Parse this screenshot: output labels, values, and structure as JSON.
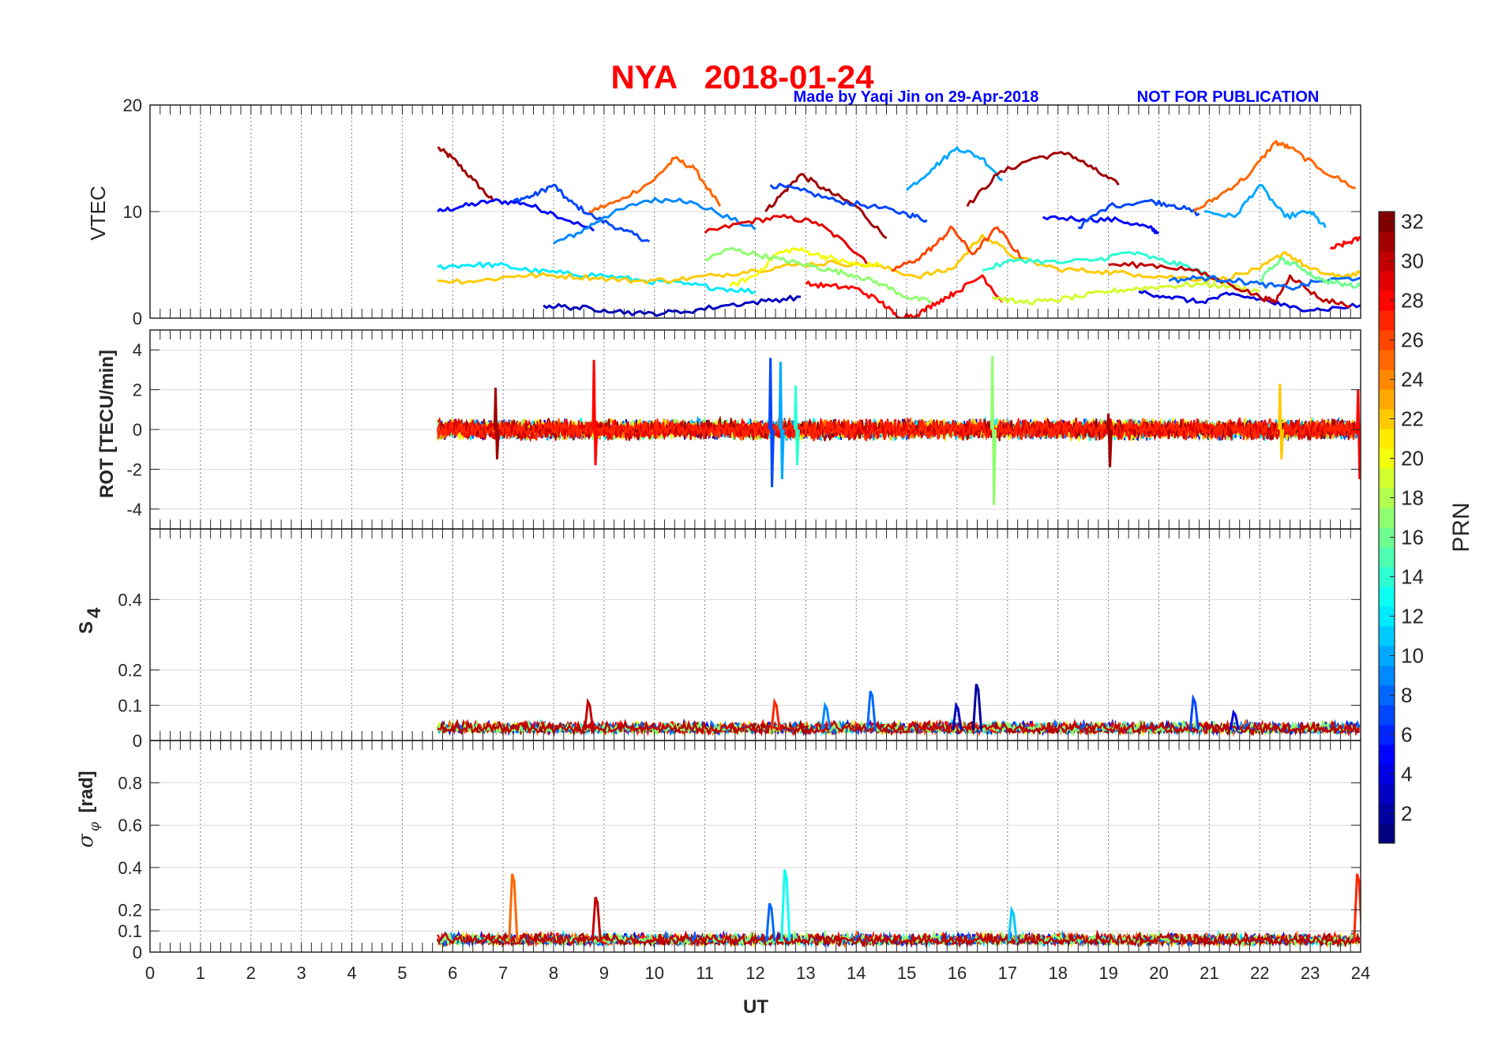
{
  "figure": {
    "title": "NYA   2018-01-24",
    "credit": "Made by Yaqi Jin on 29-Apr-2018",
    "notice": "NOT FOR PUBLICATION",
    "colors": {
      "title": "#ff0000",
      "credit": "#0000ff",
      "axis": "#262626",
      "grid": "#d9d9d9",
      "vgrid": "#808080"
    }
  },
  "chart_data": [
    {
      "type": "line",
      "panel": "VTEC",
      "ylabel": "VTEC",
      "xlim": [
        0,
        24
      ],
      "ylim": [
        0,
        20
      ],
      "yticks": [
        0,
        10,
        20
      ],
      "colorbar_prn": true,
      "series": [
        {
          "prn": 31,
          "x": [
            5.7,
            6.0,
            6.4,
            6.8
          ],
          "y": [
            16,
            15,
            13,
            11
          ]
        },
        {
          "prn": 5,
          "x": [
            5.7,
            6.2,
            6.8,
            7.4,
            8.0,
            8.8
          ],
          "y": [
            10,
            10.5,
            11,
            10.8,
            9.8,
            8.2
          ]
        },
        {
          "prn": 7,
          "x": [
            7.2,
            7.6,
            8.0,
            8.3,
            8.8,
            9.4,
            9.9
          ],
          "y": [
            11,
            11.5,
            12.5,
            11,
            9.5,
            8.2,
            7.2
          ]
        },
        {
          "prn": 9,
          "x": [
            8.0,
            8.5,
            9.0,
            9.8,
            10.5,
            11.2,
            12.0
          ],
          "y": [
            7.0,
            8,
            9.5,
            11,
            11.2,
            10,
            8.3
          ]
        },
        {
          "prn": 25,
          "x": [
            8.7,
            9.3,
            10.0,
            10.4,
            10.8,
            11.3
          ],
          "y": [
            10,
            11,
            13,
            15,
            14,
            10.5
          ]
        },
        {
          "prn": 29,
          "x": [
            11.0,
            11.8,
            12.5,
            13.2,
            13.8,
            14.3
          ],
          "y": [
            8,
            9,
            9.5,
            9,
            7,
            5
          ]
        },
        {
          "prn": 31,
          "x": [
            12.2,
            12.6,
            12.9,
            13.4,
            14.0,
            14.6
          ],
          "y": [
            10,
            12,
            13.5,
            12,
            10.5,
            7.5
          ]
        },
        {
          "prn": 7,
          "x": [
            12.3,
            12.9,
            13.6,
            14.3,
            15.0,
            15.4
          ],
          "y": [
            12.5,
            12,
            11,
            10.5,
            9.8,
            9.2
          ]
        },
        {
          "prn": 10,
          "x": [
            15.0,
            15.5,
            16.0,
            16.5,
            16.9
          ],
          "y": [
            12,
            14,
            16,
            15,
            13
          ]
        },
        {
          "prn": 31,
          "x": [
            16.2,
            16.8,
            17.5,
            18.2,
            18.7,
            19.2
          ],
          "y": [
            10.5,
            13.5,
            15,
            15.5,
            14,
            12.5
          ]
        },
        {
          "prn": 5,
          "x": [
            17.7,
            18.5,
            19.2,
            19.8,
            20.0
          ],
          "y": [
            9.5,
            9.3,
            9.2,
            8.5,
            8.0
          ]
        },
        {
          "prn": 7,
          "x": [
            18.4,
            19.0,
            19.8,
            20.3,
            20.8
          ],
          "y": [
            8.5,
            10.5,
            11,
            10.6,
            9.8
          ]
        },
        {
          "prn": 25,
          "x": [
            20.7,
            21.2,
            21.8,
            22.3,
            22.6,
            23.2,
            23.9
          ],
          "y": [
            10,
            11.5,
            13.5,
            16.5,
            16,
            14,
            12.2
          ]
        },
        {
          "prn": 10,
          "x": [
            20.9,
            21.5,
            22.0,
            22.5,
            23.0,
            23.3
          ],
          "y": [
            10,
            9.5,
            12.5,
            9.5,
            10,
            8.5
          ]
        },
        {
          "prn": 28,
          "x": [
            23.4,
            23.7,
            24.0
          ],
          "y": [
            6.5,
            7,
            7.5
          ]
        },
        {
          "prn": 12,
          "x": [
            5.7,
            6.3,
            6.9,
            7.5,
            8.2,
            9.0,
            9.8,
            10.6,
            11.3,
            12.0
          ],
          "y": [
            4.8,
            5.0,
            5.0,
            4.5,
            4.2,
            4.0,
            3.5,
            3.2,
            2.8,
            2.5
          ]
        },
        {
          "prn": 22,
          "x": [
            5.7,
            6.5,
            7.3,
            8.0,
            8.8,
            9.6,
            10.4,
            11.2,
            12.0,
            12.8,
            13.6,
            14.4,
            15.2,
            15.9,
            16.5,
            17.2,
            18.0,
            18.8,
            19.6,
            20.4,
            21.2,
            22.0,
            22.5,
            23.0,
            23.5,
            24.0
          ],
          "y": [
            3.5,
            3.5,
            4.0,
            4.0,
            3.8,
            3.5,
            3.6,
            4.0,
            4.5,
            5.0,
            5.2,
            4.9,
            3.9,
            4.6,
            7.8,
            5.6,
            4.6,
            4.4,
            4.1,
            3.8,
            3.6,
            4.6,
            6.2,
            4.6,
            3.9,
            4.2
          ]
        },
        {
          "prn": 20,
          "x": [
            11.5,
            12.0,
            12.4,
            12.8,
            13.2,
            13.6,
            14.0,
            14.5
          ],
          "y": [
            3,
            4,
            6,
            6.5,
            6,
            5.5,
            5,
            5
          ]
        },
        {
          "prn": 17,
          "x": [
            11.0,
            11.5,
            12.0,
            12.5,
            13.0,
            13.5,
            14.0,
            14.5,
            15.0,
            15.5
          ],
          "y": [
            5.5,
            6.5,
            6,
            5.5,
            5,
            4.5,
            4.0,
            3.2,
            2.0,
            1.5
          ]
        },
        {
          "prn": 26,
          "x": [
            14.7,
            15.2,
            15.6,
            15.9,
            16.3,
            16.8,
            17.3
          ],
          "y": [
            4.5,
            5.5,
            7,
            8.5,
            6,
            8.5,
            5.5
          ]
        },
        {
          "prn": 3,
          "x": [
            7.8,
            8.4,
            9.0,
            9.8,
            10.6,
            11.4,
            12.2,
            12.9
          ],
          "y": [
            1.2,
            1.0,
            0.8,
            0.4,
            0.6,
            1.2,
            1.6,
            2.0
          ]
        },
        {
          "prn": 28,
          "x": [
            13.0,
            13.5,
            14.0,
            14.5,
            14.8,
            15.2,
            15.6,
            16.0,
            16.5,
            16.9
          ],
          "y": [
            3.2,
            3.0,
            2.8,
            1.5,
            0.2,
            0.3,
            1.5,
            2.5,
            4.0,
            1.5
          ]
        },
        {
          "prn": 19,
          "x": [
            16.7,
            17.2,
            17.8,
            18.4,
            19.0,
            19.6,
            20.2,
            20.8,
            21.4,
            22.0
          ],
          "y": [
            2.0,
            1.5,
            1.6,
            2.0,
            2.5,
            2.8,
            3.0,
            3.2,
            3.0,
            2.5
          ]
        },
        {
          "prn": 14,
          "x": [
            16.5,
            17.2,
            18.0,
            18.8,
            19.4,
            20.0,
            20.6,
            21.2
          ],
          "y": [
            4.5,
            5.5,
            5.2,
            5.5,
            6.2,
            5.5,
            4.8,
            3.5
          ]
        },
        {
          "prn": 4,
          "x": [
            19.6,
            20.2,
            20.8,
            21.4,
            22.0,
            22.6,
            23.2,
            24.0
          ],
          "y": [
            2.5,
            2.0,
            1.5,
            2.2,
            1.8,
            1.0,
            0.8,
            1.2
          ]
        },
        {
          "prn": 30,
          "x": [
            19.0,
            19.8,
            20.6,
            21.4,
            22.0,
            22.3,
            22.6,
            23.2,
            23.8
          ],
          "y": [
            5.0,
            5.0,
            4.6,
            3.2,
            2.0,
            1.5,
            4.0,
            1.8,
            1.2
          ]
        },
        {
          "prn": 8,
          "x": [
            20.2,
            20.8,
            21.4,
            22.0,
            22.6,
            23.2,
            24.0
          ],
          "y": [
            3.5,
            3.8,
            3.6,
            3.2,
            2.8,
            3.5,
            3.8
          ]
        },
        {
          "prn": 16,
          "x": [
            22.0,
            22.4,
            22.8,
            23.2,
            23.6,
            24.0
          ],
          "y": [
            3.5,
            5.5,
            4.8,
            3.6,
            3.2,
            3.0
          ]
        }
      ]
    },
    {
      "type": "line",
      "panel": "ROT",
      "ylabel": "ROT [TECU/min]",
      "xlim": [
        0,
        24
      ],
      "ylim": [
        -5,
        5
      ],
      "yticks": [
        -4,
        -2,
        0,
        2,
        4
      ],
      "noise_band": {
        "x_start": 5.7,
        "x_end": 24.0,
        "typical_amplitude": 0.4
      },
      "spikes": [
        {
          "x": 6.85,
          "ymin": -1.5,
          "ymax": 2.1,
          "prn": 31
        },
        {
          "x": 8.8,
          "ymin": -1.8,
          "ymax": 3.5,
          "prn": 28
        },
        {
          "x": 12.3,
          "ymin": -2.9,
          "ymax": 3.6,
          "prn": 7
        },
        {
          "x": 12.5,
          "ymin": -2.5,
          "ymax": 3.4,
          "prn": 10
        },
        {
          "x": 12.8,
          "ymin": -1.8,
          "ymax": 2.2,
          "prn": 14
        },
        {
          "x": 16.7,
          "ymin": -3.8,
          "ymax": 3.7,
          "prn": 17
        },
        {
          "x": 19.0,
          "ymin": -1.9,
          "ymax": 0.8,
          "prn": 31
        },
        {
          "x": 22.4,
          "ymin": -1.5,
          "ymax": 2.3,
          "prn": 22
        },
        {
          "x": 23.95,
          "ymin": -2.5,
          "ymax": 2.0,
          "prn": 28
        }
      ]
    },
    {
      "type": "line",
      "panel": "S4",
      "ylabel": "S4",
      "xlim": [
        0,
        24
      ],
      "ylim": [
        0,
        0.6
      ],
      "yticks": [
        0,
        0.1,
        0.2,
        0.4
      ],
      "baseline": 0.03,
      "spikes": [
        {
          "x": 8.7,
          "y": 0.11,
          "prn": 30
        },
        {
          "x": 12.4,
          "y": 0.11,
          "prn": 27
        },
        {
          "x": 13.4,
          "y": 0.1,
          "prn": 9
        },
        {
          "x": 14.3,
          "y": 0.14,
          "prn": 8
        },
        {
          "x": 16.0,
          "y": 0.1,
          "prn": 3
        },
        {
          "x": 16.4,
          "y": 0.16,
          "prn": 2
        },
        {
          "x": 20.7,
          "y": 0.12,
          "prn": 7
        },
        {
          "x": 21.5,
          "y": 0.08,
          "prn": 4
        }
      ]
    },
    {
      "type": "line",
      "panel": "sigma_phi",
      "ylabel": "σφ [rad]",
      "xlim": [
        0,
        24
      ],
      "ylim": [
        0,
        1
      ],
      "yticks": [
        0,
        0.1,
        0.2,
        0.4,
        0.6,
        0.8
      ],
      "xticks": [
        0,
        1,
        2,
        3,
        4,
        5,
        6,
        7,
        8,
        9,
        10,
        11,
        12,
        13,
        14,
        15,
        16,
        17,
        18,
        19,
        20,
        21,
        22,
        23,
        24
      ],
      "xlabel": "UT",
      "baseline": 0.05,
      "spikes": [
        {
          "x": 7.2,
          "y": 0.37,
          "prn": 25
        },
        {
          "x": 8.85,
          "y": 0.26,
          "prn": 30
        },
        {
          "x": 12.3,
          "y": 0.23,
          "prn": 8
        },
        {
          "x": 12.6,
          "y": 0.39,
          "prn": 13
        },
        {
          "x": 17.1,
          "y": 0.2,
          "prn": 11
        },
        {
          "x": 23.95,
          "y": 0.37,
          "prn": 27
        }
      ]
    }
  ],
  "colorbar": {
    "label": "PRN",
    "min": 1,
    "max": 32,
    "ticks": [
      2,
      4,
      6,
      8,
      10,
      12,
      14,
      16,
      18,
      20,
      22,
      24,
      26,
      28,
      30,
      32
    ]
  }
}
